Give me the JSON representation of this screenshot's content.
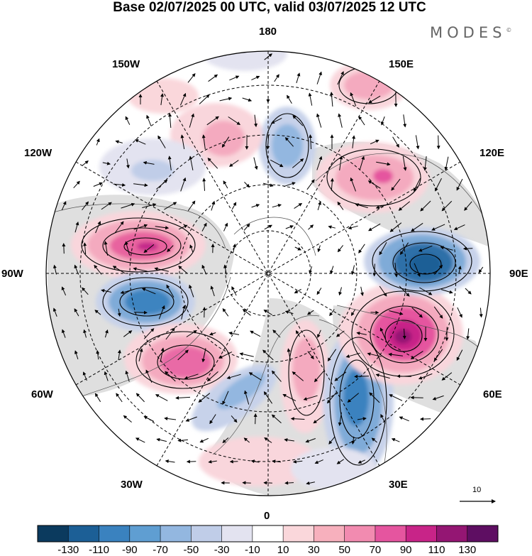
{
  "title": "Base 02/07/2025 00 UTC, valid 03/07/2025 12 UTC",
  "brand": "MODES",
  "brand_mark": "©",
  "longitude_labels": {
    "lon_180": "180",
    "lon_150E": "150E",
    "lon_120E": "120E",
    "lon_90E": "90E",
    "lon_60E": "60E",
    "lon_30E": "30E",
    "lon_0": "0",
    "lon_30W": "30W",
    "lon_60W": "60W",
    "lon_90W": "90W",
    "lon_120W": "120W",
    "lon_150W": "150W"
  },
  "reference_vector": {
    "label": "10"
  },
  "colorbar": {
    "labels": [
      "-130",
      "-110",
      "-90",
      "-70",
      "-50",
      "-30",
      "-10",
      "10",
      "30",
      "50",
      "70",
      "90",
      "110",
      "130"
    ],
    "colors": [
      "#0b3a5e",
      "#1c5f96",
      "#3a82bf",
      "#5f9ed2",
      "#93b7e0",
      "#c0cde8",
      "#e3e3f0",
      "#ffffff",
      "#fad7db",
      "#f7b0bd",
      "#f28bb0",
      "#e5559f",
      "#c82488",
      "#941673",
      "#5e0e62"
    ]
  },
  "colors": {
    "land": "#d9d9d9",
    "arrows": "#000000",
    "contours": "#000000"
  }
}
